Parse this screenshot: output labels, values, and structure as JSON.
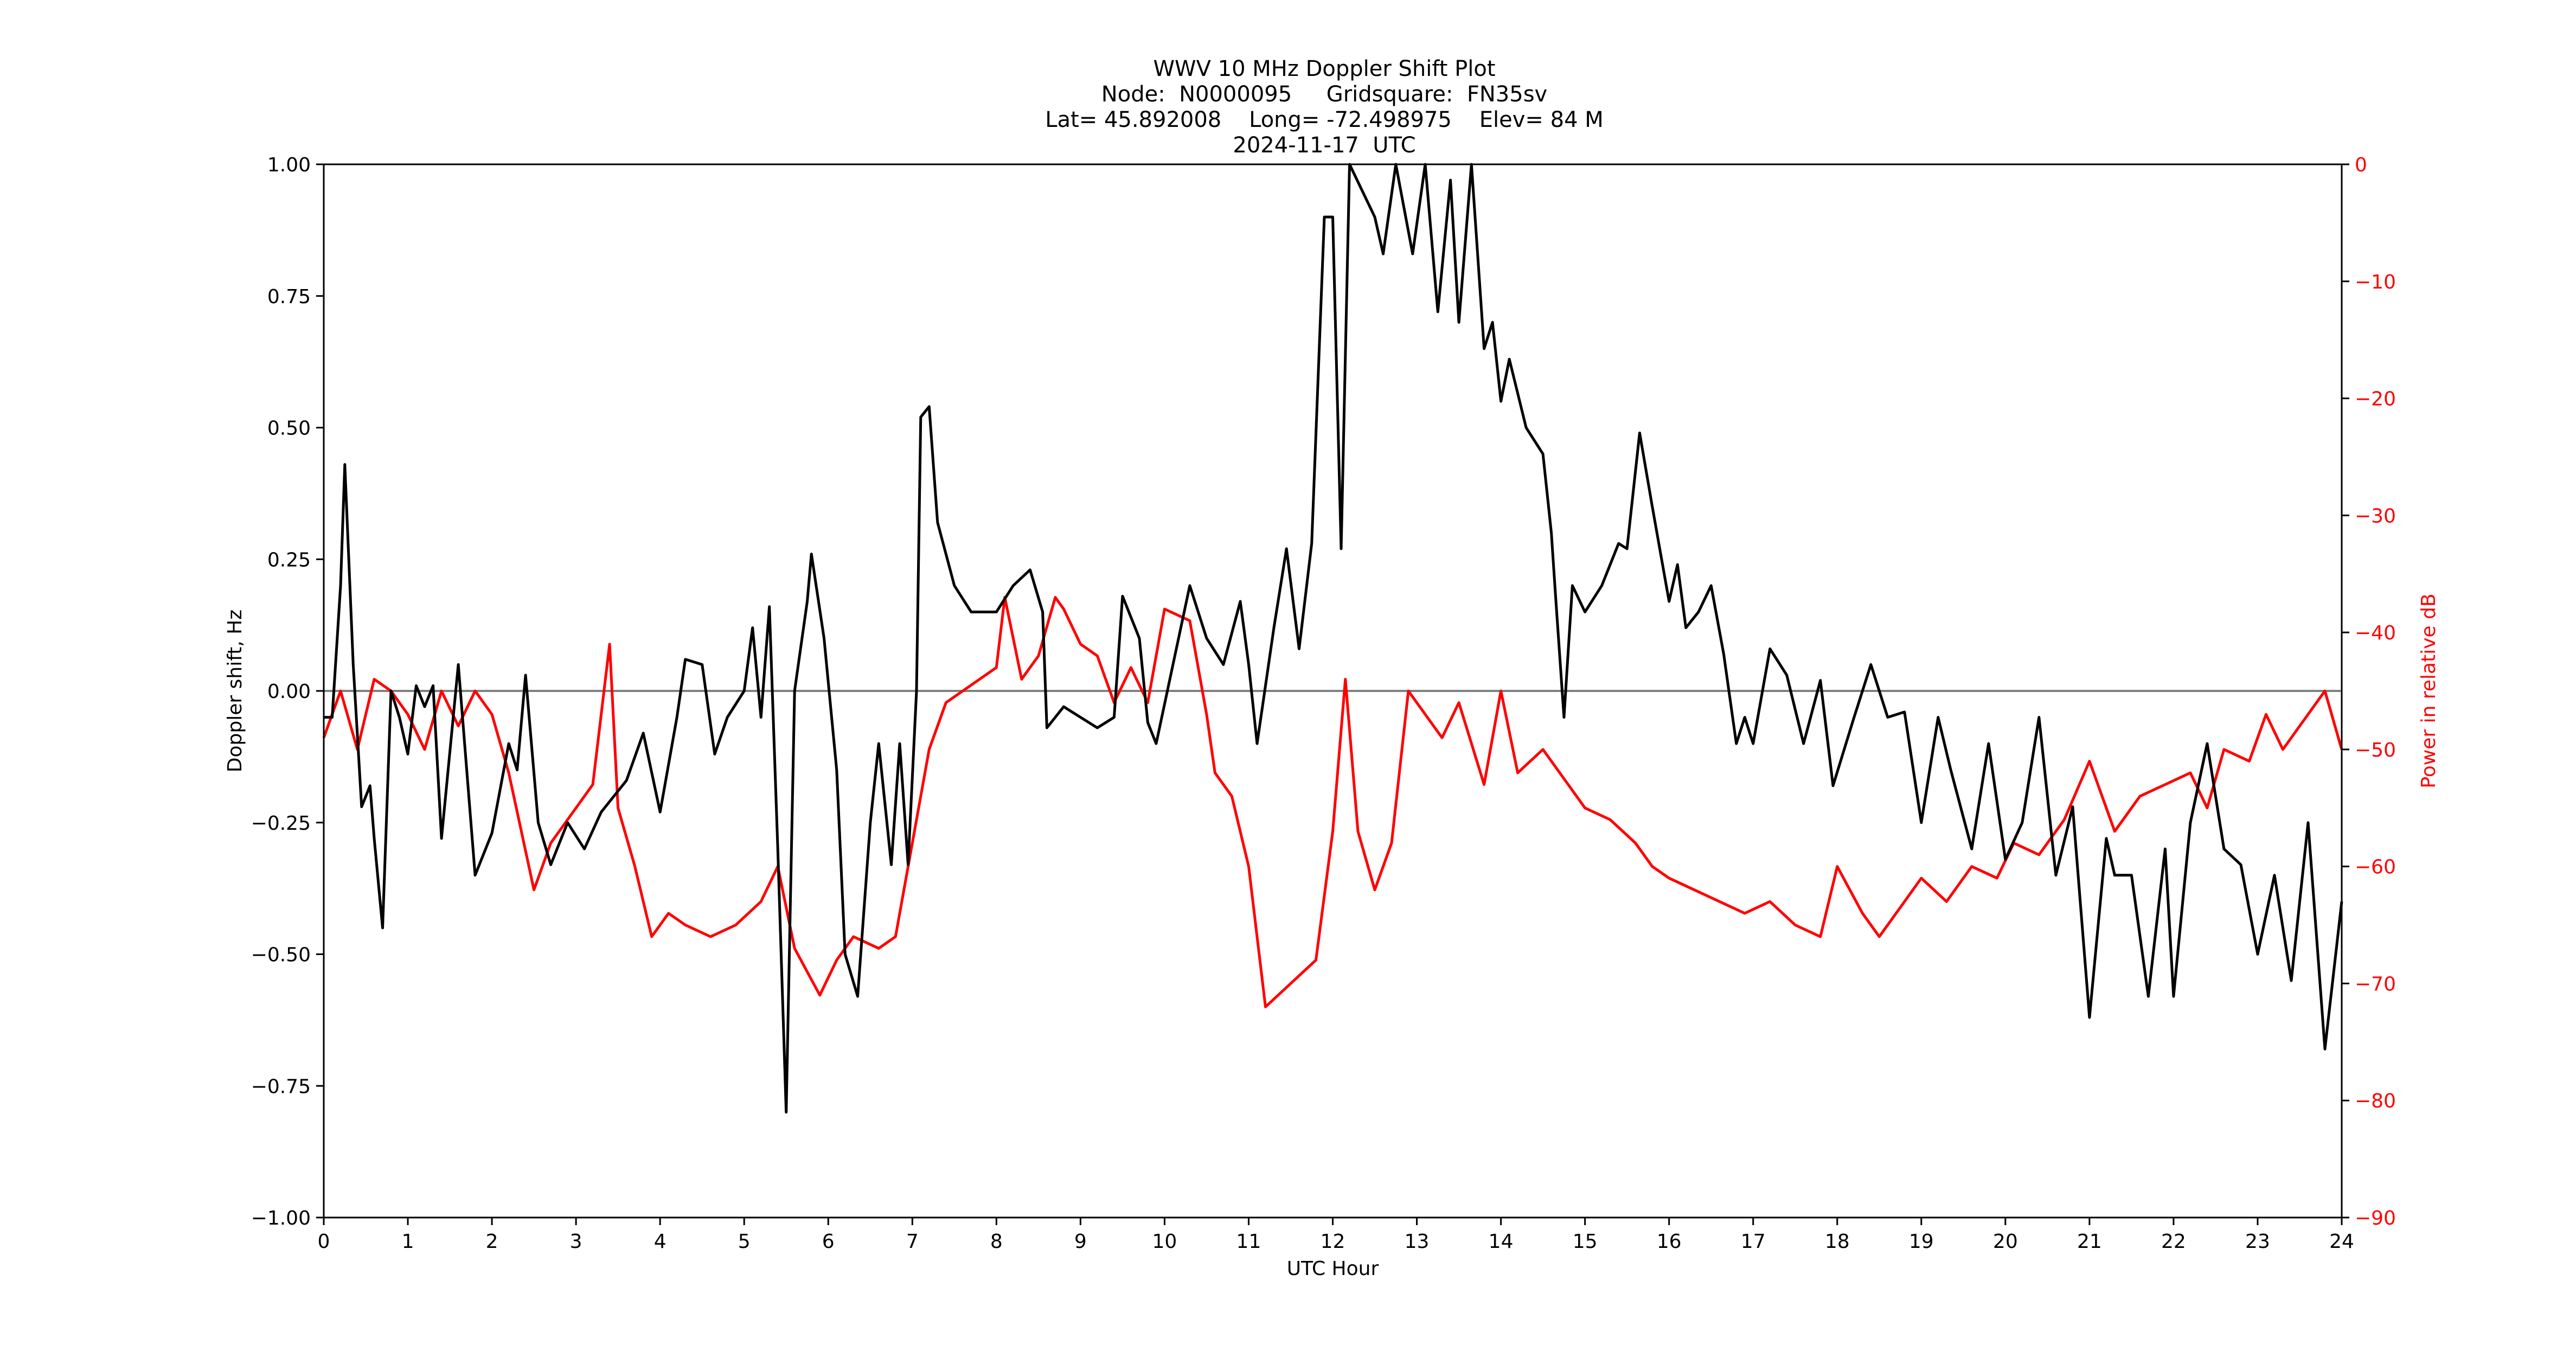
{
  "title": {
    "line1": "WWV 10 MHz Doppler Shift Plot",
    "line2": "Node:  N0000095     Gridsquare:  FN35sv",
    "line3": "Lat= 45.892008    Long= -72.498975    Elev= 84 M",
    "line4": "2024-11-17  UTC"
  },
  "axes": {
    "xlabel": "UTC Hour",
    "ylabel_left": "Doppler shift, Hz",
    "ylabel_right": "Power in relative dB",
    "x_ticks": [
      "0",
      "1",
      "2",
      "3",
      "4",
      "5",
      "6",
      "7",
      "8",
      "9",
      "10",
      "11",
      "12",
      "13",
      "14",
      "15",
      "16",
      "17",
      "18",
      "19",
      "20",
      "21",
      "22",
      "23",
      "24"
    ],
    "y_left_ticks": [
      "1.00",
      "0.75",
      "0.50",
      "0.25",
      "0.00",
      "−0.25",
      "−0.50",
      "−0.75",
      "−1.00"
    ],
    "y_right_ticks": [
      "0",
      "−10",
      "−20",
      "−30",
      "−40",
      "−50",
      "−60",
      "−70",
      "−80",
      "−90"
    ]
  },
  "colors": {
    "doppler": "#000000",
    "power": "#ff0000",
    "zero_line": "#808080",
    "right_axis_text": "#ff0000"
  },
  "chart_data": {
    "type": "line",
    "title": "WWV 10 MHz Doppler Shift Plot — Node: N0000095, Gridsquare: FN35sv, Lat= 45.892008, Long= -72.498975, Elev= 84 M, 2024-11-17 UTC",
    "xlabel": "UTC Hour",
    "ylabel": "Doppler shift, Hz",
    "ylabel_right": "Power in relative dB",
    "xlim": [
      0,
      24
    ],
    "ylim": [
      -1.0,
      1.0
    ],
    "ylim_right": [
      -90,
      0
    ],
    "grid": false,
    "reference_line": {
      "y": 0.0,
      "color": "#808080"
    },
    "series": [
      {
        "name": "Doppler shift (Hz)",
        "axis": "left",
        "color": "#000000",
        "x": [
          0,
          0.1,
          0.2,
          0.25,
          0.35,
          0.45,
          0.55,
          0.6,
          0.7,
          0.8,
          0.9,
          1.0,
          1.1,
          1.2,
          1.3,
          1.4,
          1.6,
          1.8,
          2.0,
          2.2,
          2.3,
          2.4,
          2.55,
          2.7,
          2.9,
          3.1,
          3.3,
          3.6,
          3.8,
          4.0,
          4.2,
          4.3,
          4.5,
          4.65,
          4.8,
          5.0,
          5.1,
          5.2,
          5.3,
          5.4,
          5.5,
          5.6,
          5.75,
          5.8,
          5.95,
          6.1,
          6.2,
          6.35,
          6.5,
          6.6,
          6.75,
          6.85,
          6.95,
          7.05,
          7.1,
          7.2,
          7.3,
          7.5,
          7.7,
          8.0,
          8.2,
          8.4,
          8.55,
          8.6,
          8.8,
          9.0,
          9.2,
          9.4,
          9.5,
          9.7,
          9.8,
          9.9,
          10.1,
          10.3,
          10.5,
          10.7,
          10.9,
          11.0,
          11.1,
          11.3,
          11.45,
          11.6,
          11.75,
          11.9,
          12.0,
          12.1,
          12.2,
          12.5,
          12.6,
          12.75,
          12.95,
          13.1,
          13.25,
          13.4,
          13.5,
          13.65,
          13.8,
          13.9,
          14.0,
          14.1,
          14.3,
          14.5,
          14.6,
          14.65,
          14.75,
          14.85,
          15.0,
          15.2,
          15.4,
          15.5,
          15.65,
          15.8,
          16.0,
          16.1,
          16.2,
          16.35,
          16.5,
          16.65,
          16.8,
          16.9,
          17.0,
          17.2,
          17.4,
          17.6,
          17.8,
          17.95,
          18.2,
          18.4,
          18.6,
          18.8,
          19.0,
          19.2,
          19.35,
          19.6,
          19.8,
          20.0,
          20.2,
          20.4,
          20.6,
          20.8,
          21.0,
          21.2,
          21.3,
          21.5,
          21.7,
          21.9,
          22.0,
          22.2,
          22.4,
          22.6,
          22.8,
          23.0,
          23.2,
          23.4,
          23.6,
          23.8,
          24.0
        ],
        "values": [
          -0.05,
          -0.05,
          0.2,
          0.43,
          0.05,
          -0.22,
          -0.18,
          -0.28,
          -0.45,
          0.0,
          -0.05,
          -0.12,
          0.01,
          -0.03,
          0.01,
          -0.28,
          0.05,
          -0.35,
          -0.27,
          -0.1,
          -0.15,
          0.03,
          -0.25,
          -0.33,
          -0.25,
          -0.3,
          -0.23,
          -0.17,
          -0.08,
          -0.23,
          -0.05,
          0.06,
          0.05,
          -0.12,
          -0.05,
          0.0,
          0.12,
          -0.05,
          0.16,
          -0.3,
          -0.8,
          0.0,
          0.17,
          0.26,
          0.1,
          -0.15,
          -0.5,
          -0.58,
          -0.25,
          -0.1,
          -0.33,
          -0.1,
          -0.33,
          0.0,
          0.52,
          0.54,
          0.32,
          0.2,
          0.15,
          0.15,
          0.2,
          0.23,
          0.15,
          -0.07,
          -0.03,
          -0.05,
          -0.07,
          -0.05,
          0.18,
          0.1,
          -0.06,
          -0.1,
          0.05,
          0.2,
          0.1,
          0.05,
          0.17,
          0.05,
          -0.1,
          0.12,
          0.27,
          0.08,
          0.28,
          0.9,
          0.9,
          0.27,
          1.0,
          0.9,
          0.83,
          1.0,
          0.83,
          1.0,
          0.72,
          0.97,
          0.7,
          1.0,
          0.65,
          0.7,
          0.55,
          0.63,
          0.5,
          0.45,
          0.3,
          0.18,
          -0.05,
          0.2,
          0.15,
          0.2,
          0.28,
          0.27,
          0.49,
          0.35,
          0.17,
          0.24,
          0.12,
          0.15,
          0.2,
          0.07,
          -0.1,
          -0.05,
          -0.1,
          0.08,
          0.03,
          -0.1,
          0.02,
          -0.18,
          -0.05,
          0.05,
          -0.05,
          -0.04,
          -0.25,
          -0.05,
          -0.15,
          -0.3,
          -0.1,
          -0.32,
          -0.25,
          -0.05,
          -0.35,
          -0.22,
          -0.62,
          -0.28,
          -0.35,
          -0.35,
          -0.58,
          -0.3,
          -0.58,
          -0.25,
          -0.1,
          -0.3,
          -0.33,
          -0.5,
          -0.35,
          -0.55,
          -0.25,
          -0.68,
          -0.4
        ]
      },
      {
        "name": "Power (relative dB)",
        "axis": "right",
        "color": "#ff0000",
        "x": [
          0,
          0.2,
          0.4,
          0.6,
          0.8,
          1.0,
          1.2,
          1.4,
          1.6,
          1.8,
          2.0,
          2.2,
          2.5,
          2.7,
          3.0,
          3.2,
          3.4,
          3.5,
          3.7,
          3.9,
          4.1,
          4.3,
          4.6,
          4.9,
          5.2,
          5.4,
          5.6,
          5.9,
          6.1,
          6.3,
          6.6,
          6.8,
          7.0,
          7.2,
          7.4,
          7.6,
          7.8,
          8.0,
          8.1,
          8.3,
          8.5,
          8.7,
          8.8,
          9.0,
          9.2,
          9.4,
          9.6,
          9.8,
          10.0,
          10.3,
          10.5,
          10.6,
          10.8,
          11.0,
          11.2,
          11.5,
          11.8,
          12.0,
          12.15,
          12.3,
          12.5,
          12.7,
          12.9,
          13.1,
          13.3,
          13.5,
          13.8,
          14.0,
          14.2,
          14.5,
          14.8,
          15.0,
          15.3,
          15.6,
          15.8,
          16.0,
          16.3,
          16.6,
          16.9,
          17.2,
          17.5,
          17.8,
          18.0,
          18.3,
          18.5,
          18.8,
          19.0,
          19.3,
          19.6,
          19.9,
          20.1,
          20.4,
          20.7,
          21.0,
          21.3,
          21.6,
          21.9,
          22.2,
          22.4,
          22.6,
          22.9,
          23.1,
          23.3,
          23.5,
          23.8,
          24.0
        ],
        "values": [
          -49,
          -45,
          -50,
          -44,
          -45,
          -47,
          -50,
          -45,
          -48,
          -45,
          -47,
          -52,
          -62,
          -58,
          -55,
          -53,
          -41,
          -55,
          -60,
          -66,
          -64,
          -65,
          -66,
          -65,
          -63,
          -60,
          -67,
          -71,
          -68,
          -66,
          -67,
          -66,
          -58,
          -50,
          -46,
          -45,
          -44,
          -43,
          -37,
          -44,
          -42,
          -37,
          -38,
          -41,
          -42,
          -46,
          -43,
          -46,
          -38,
          -39,
          -47,
          -52,
          -54,
          -60,
          -72,
          -70,
          -68,
          -57,
          -44,
          -57,
          -62,
          -58,
          -45,
          -47,
          -49,
          -46,
          -53,
          -45,
          -52,
          -50,
          -53,
          -55,
          -56,
          -58,
          -60,
          -61,
          -62,
          -63,
          -64,
          -63,
          -65,
          -66,
          -60,
          -64,
          -66,
          -63,
          -61,
          -63,
          -60,
          -61,
          -58,
          -59,
          -56,
          -51,
          -57,
          -54,
          -53,
          -52,
          -55,
          -50,
          -51,
          -47,
          -50,
          -48,
          -45,
          -50
        ]
      }
    ]
  }
}
